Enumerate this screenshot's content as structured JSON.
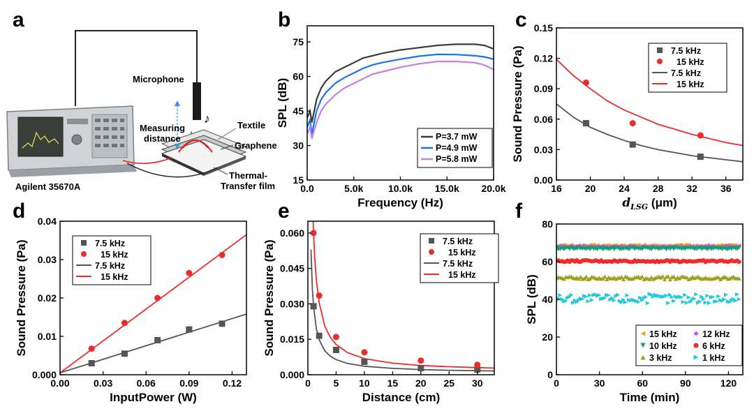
{
  "panel_a": {
    "label": "a",
    "callouts": {
      "microphone": "Microphone",
      "measuring_1": "Measuring",
      "measuring_2": "distance",
      "textile": "Textile",
      "graphene": "Graphene",
      "film_1": "Thermal-",
      "film_2": "Transfer film",
      "analyzer": "Agilent 35670A"
    }
  },
  "chart_data": [
    {
      "id": "b",
      "panel_label": "b",
      "type": "line",
      "xlabel": "Frequency (Hz)",
      "ylabel": "SPL (dB)",
      "xlim": [
        0,
        20000
      ],
      "ylim": [
        15,
        82
      ],
      "xticks": [
        0,
        5000,
        10000,
        15000,
        20000
      ],
      "xtick_labels": [
        "0.0",
        "5.0k",
        "10.0k",
        "15.0k",
        "20.0k"
      ],
      "yticks": [
        15,
        30,
        45,
        60,
        75
      ],
      "ytick_labels": [
        "15",
        "30",
        "45",
        "60",
        "75"
      ],
      "legend_position": "lower-right",
      "series": [
        {
          "name": "P=3.7 mW",
          "color": "#3a3a3a",
          "x": [
            0,
            300,
            500,
            1000,
            1500,
            2000,
            3000,
            4000,
            5000,
            6000,
            7000,
            8000,
            10000,
            12000,
            14000,
            16000,
            18000,
            19000,
            20000
          ],
          "y": [
            42,
            45,
            40,
            50,
            55,
            58,
            62,
            64,
            66,
            68,
            69,
            70,
            71.5,
            72.5,
            73.5,
            74,
            74,
            73.5,
            72
          ]
        },
        {
          "name": "P=4.9 mW",
          "color": "#1874e8",
          "x": [
            0,
            300,
            500,
            1000,
            1500,
            2000,
            3000,
            4000,
            5000,
            6000,
            7000,
            8000,
            10000,
            12000,
            14000,
            16000,
            18000,
            19000,
            20000
          ],
          "y": [
            38,
            41,
            35,
            45,
            50,
            53,
            57,
            59.5,
            61.5,
            63.5,
            65,
            66,
            67.5,
            68.8,
            69.6,
            69.5,
            69,
            68.5,
            67.5
          ]
        },
        {
          "name": "P=5.8 mW",
          "color": "#c080e8",
          "x": [
            0,
            300,
            500,
            1000,
            1500,
            2000,
            3000,
            4000,
            5000,
            6000,
            7000,
            8000,
            10000,
            12000,
            14000,
            16000,
            18000,
            19000,
            20000
          ],
          "y": [
            35,
            38,
            33,
            40,
            45,
            48,
            52,
            55,
            57,
            59,
            61,
            62,
            64,
            65.5,
            66.5,
            66.5,
            66,
            65,
            63
          ]
        }
      ]
    },
    {
      "id": "c",
      "panel_label": "c",
      "type": "scatter",
      "xlabel_italic": "d",
      "xlabel_sub": "LSG",
      "xlabel_unit": " (μm)",
      "ylabel": "Sound Pressure (Pa)",
      "xlim": [
        16,
        38
      ],
      "ylim": [
        0,
        0.15
      ],
      "xticks": [
        16,
        20,
        24,
        28,
        32,
        36
      ],
      "xtick_labels": [
        "16",
        "20",
        "24",
        "28",
        "32",
        "36"
      ],
      "yticks": [
        0,
        0.03,
        0.06,
        0.09,
        0.12,
        0.15
      ],
      "ytick_labels": [
        "0.00",
        "0.03",
        "0.06",
        "0.09",
        "0.12",
        "0.15"
      ],
      "legend_position": "top-right",
      "series": [
        {
          "name": "7.5 kHz",
          "marker": "square",
          "color": "#555555",
          "x": [
            19.5,
            25,
            33
          ],
          "y": [
            0.056,
            0.035,
            0.023
          ]
        },
        {
          "name": "15 kHz",
          "marker": "circle",
          "color": "#ee2b2b",
          "x": [
            19.5,
            25,
            33
          ],
          "y": [
            0.096,
            0.056,
            0.044
          ]
        }
      ],
      "fits": [
        {
          "name": "7.5 kHz",
          "color": "#555555",
          "x": [
            16,
            18,
            20,
            22,
            24,
            26,
            28,
            30,
            32,
            34,
            36,
            38
          ],
          "y": [
            0.075,
            0.062,
            0.052,
            0.045,
            0.039,
            0.034,
            0.03,
            0.027,
            0.024,
            0.022,
            0.02,
            0.018
          ]
        },
        {
          "name": "15 kHz",
          "color": "#ee2b2b",
          "x": [
            16,
            18,
            20,
            22,
            24,
            26,
            28,
            30,
            32,
            34,
            36,
            38
          ],
          "y": [
            0.119,
            0.103,
            0.09,
            0.078,
            0.069,
            0.062,
            0.055,
            0.05,
            0.045,
            0.041,
            0.037,
            0.034
          ]
        }
      ]
    },
    {
      "id": "d",
      "panel_label": "d",
      "type": "scatter",
      "xlabel": "InputPower (W)",
      "ylabel": "Sound Pressure (Pa)",
      "xlim": [
        0,
        0.13
      ],
      "ylim": [
        0,
        0.04
      ],
      "xticks": [
        0,
        0.03,
        0.06,
        0.09,
        0.12
      ],
      "xtick_labels": [
        "0.00",
        "0.03",
        "0.06",
        "0.09",
        "0.12"
      ],
      "yticks": [
        0,
        0.01,
        0.02,
        0.03,
        0.04
      ],
      "ytick_labels": [
        "0.000",
        "0.01",
        "0.02",
        "0.03",
        "0.04"
      ],
      "legend_position": "top-left",
      "series": [
        {
          "name": "7.5 kHz",
          "marker": "square",
          "color": "#555555",
          "x": [
            0.022,
            0.045,
            0.068,
            0.09,
            0.113
          ],
          "y": [
            0.003,
            0.0055,
            0.009,
            0.0118,
            0.0133
          ]
        },
        {
          "name": "15 kHz",
          "marker": "circle",
          "color": "#ee2b2b",
          "x": [
            0.022,
            0.045,
            0.068,
            0.09,
            0.113
          ],
          "y": [
            0.0068,
            0.0135,
            0.02,
            0.0265,
            0.0312
          ]
        }
      ],
      "fits": [
        {
          "name": "7.5 kHz",
          "color": "#555555",
          "x": [
            0,
            0.13
          ],
          "y": [
            0.0005,
            0.0158
          ]
        },
        {
          "name": "15 kHz",
          "color": "#ee2b2b",
          "x": [
            0,
            0.13
          ],
          "y": [
            0.0005,
            0.0365
          ]
        }
      ]
    },
    {
      "id": "e",
      "panel_label": "e",
      "type": "scatter",
      "xlabel": "Distance (cm)",
      "ylabel": "Sound Pressure (Pa)",
      "xlim": [
        0,
        33
      ],
      "ylim": [
        0,
        0.065
      ],
      "xticks": [
        0,
        5,
        10,
        15,
        20,
        25,
        30
      ],
      "xtick_labels": [
        "0",
        "5",
        "10",
        "15",
        "20",
        "25",
        "30"
      ],
      "yticks": [
        0,
        0.015,
        0.03,
        0.045,
        0.06
      ],
      "ytick_labels": [
        "0.000",
        "0.015",
        "0.030",
        "0.045",
        "0.060"
      ],
      "legend_position": "top-right",
      "series": [
        {
          "name": "7.5 kHz",
          "marker": "square",
          "color": "#555555",
          "x": [
            1,
            2,
            5,
            10,
            20,
            30
          ],
          "y": [
            0.029,
            0.0165,
            0.0105,
            0.0055,
            0.0028,
            0.0022
          ]
        },
        {
          "name": "15 kHz",
          "marker": "circle",
          "color": "#ee2b2b",
          "x": [
            1,
            2,
            5,
            10,
            20,
            30
          ],
          "y": [
            0.06,
            0.0335,
            0.016,
            0.0095,
            0.006,
            0.0042
          ]
        }
      ],
      "fits": [
        {
          "name": "7.5 kHz",
          "color": "#555555",
          "x": [
            0.55,
            0.8,
            1,
            1.5,
            2,
            3,
            4,
            5,
            7,
            10,
            15,
            20,
            25,
            30,
            33
          ],
          "y": [
            0.053,
            0.036,
            0.029,
            0.0195,
            0.0148,
            0.0101,
            0.0078,
            0.0064,
            0.0048,
            0.0036,
            0.0027,
            0.0022,
            0.0019,
            0.0017,
            0.0016
          ]
        },
        {
          "name": "15 kHz",
          "color": "#ee2b2b",
          "x": [
            0.9,
            1,
            1.2,
            1.5,
            2,
            3,
            4,
            5,
            7,
            10,
            15,
            20,
            25,
            30,
            33
          ],
          "y": [
            0.066,
            0.06,
            0.05,
            0.04,
            0.0305,
            0.0205,
            0.0157,
            0.0128,
            0.0094,
            0.0068,
            0.0049,
            0.0039,
            0.0034,
            0.003,
            0.0028
          ]
        }
      ]
    },
    {
      "id": "f",
      "panel_label": "f",
      "type": "scatter",
      "xlabel": "Time (min)",
      "ylabel": "SPL (dB)",
      "xlim": [
        0,
        130
      ],
      "ylim": [
        0,
        80
      ],
      "xticks": [
        0,
        30,
        60,
        90,
        120
      ],
      "xtick_labels": [
        "0",
        "30",
        "60",
        "90",
        "120"
      ],
      "yticks": [
        0,
        20,
        40,
        60,
        80
      ],
      "ytick_labels": [
        "0",
        "20",
        "40",
        "60",
        "80"
      ],
      "legend_position": "bottom-right",
      "series": [
        {
          "name": "15 kHz",
          "marker": "triangle-left",
          "color": "#e8a020",
          "level": 68.5,
          "noise": 0.5
        },
        {
          "name": "12 kHz",
          "marker": "diamond",
          "color": "#b25ae8",
          "level": 68,
          "noise": 0.4
        },
        {
          "name": "10 kHz",
          "marker": "triangle-down",
          "color": "#12a070",
          "level": 67,
          "noise": 0.5
        },
        {
          "name": "6 kHz",
          "marker": "circle",
          "color": "#ee2b2b",
          "level": 60.3,
          "noise": 0.5
        },
        {
          "name": "3 kHz",
          "marker": "triangle-up",
          "color": "#a0a020",
          "level": 51.5,
          "noise": 0.8
        },
        {
          "name": "1 kHz",
          "marker": "triangle-right",
          "color": "#20c8d8",
          "level": 40.5,
          "noise": 2.5
        }
      ]
    }
  ]
}
